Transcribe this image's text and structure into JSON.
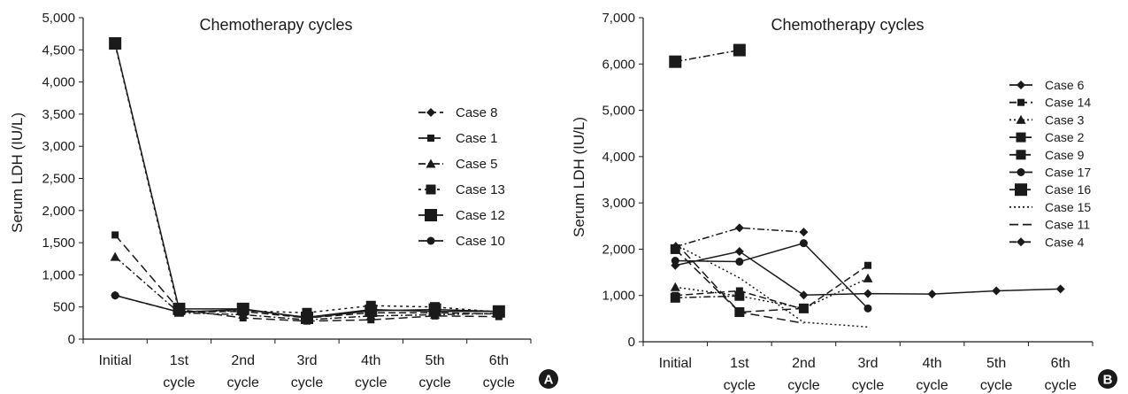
{
  "figure": {
    "panels": [
      "A",
      "B"
    ]
  },
  "chart_data": [
    {
      "panel": "A",
      "type": "line",
      "title": "Chemotherapy cycles",
      "xlabel": "",
      "ylabel": "Serum LDH (IU/L)",
      "ylim": [
        0,
        5000
      ],
      "yticks": [
        "0",
        "500",
        "1,000",
        "1,500",
        "2,000",
        "2,500",
        "3,000",
        "3,500",
        "4,000",
        "4,500",
        "5,000"
      ],
      "ytick_values": [
        0,
        500,
        1000,
        1500,
        2000,
        2500,
        3000,
        3500,
        4000,
        4500,
        5000
      ],
      "categories": [
        [
          "Initial"
        ],
        [
          "1st",
          "cycle"
        ],
        [
          "2nd",
          "cycle"
        ],
        [
          "3rd",
          "cycle"
        ],
        [
          "4th",
          "cycle"
        ],
        [
          "5th",
          "cycle"
        ],
        [
          "6th",
          "cycle"
        ]
      ],
      "legend_position": "right",
      "grid": false,
      "series": [
        {
          "name": "Case 8",
          "marker": "diamond",
          "dash": "8,4",
          "values": [
            680,
            420,
            430,
            330,
            410,
            410,
            390
          ]
        },
        {
          "name": "Case 1",
          "marker": "square-small",
          "dash": "10,5",
          "values": [
            1620,
            460,
            330,
            280,
            300,
            360,
            350
          ]
        },
        {
          "name": "Case 5",
          "marker": "triangle",
          "dash": "8,3,2,3",
          "values": [
            1280,
            410,
            380,
            300,
            360,
            380,
            400
          ]
        },
        {
          "name": "Case 13",
          "marker": "square",
          "dash": "3,4",
          "values": [
            4580,
            430,
            440,
            410,
            520,
            500,
            420
          ]
        },
        {
          "name": "Case 12",
          "marker": "square-big",
          "dash": "",
          "values": [
            4600,
            470,
            470,
            330,
            440,
            460,
            430
          ]
        },
        {
          "name": "Case 10",
          "marker": "circle",
          "dash": "",
          "values": [
            680,
            420,
            460,
            340,
            460,
            430,
            430
          ]
        }
      ]
    },
    {
      "panel": "B",
      "type": "line",
      "title": "Chemotherapy cycles",
      "xlabel": "",
      "ylabel": "Serum LDH (IU/L)",
      "ylim": [
        0,
        7000
      ],
      "yticks": [
        "0",
        "1,000",
        "2,000",
        "3,000",
        "4,000",
        "5,000",
        "6,000",
        "7,000"
      ],
      "ytick_values": [
        0,
        1000,
        2000,
        3000,
        4000,
        5000,
        6000,
        7000
      ],
      "categories": [
        [
          "Initial"
        ],
        [
          "1st",
          "cycle"
        ],
        [
          "2nd",
          "cycle"
        ],
        [
          "3rd",
          "cycle"
        ],
        [
          "4th",
          "cycle"
        ],
        [
          "5th",
          "cycle"
        ],
        [
          "6th",
          "cycle"
        ]
      ],
      "legend_position": "right",
      "grid": false,
      "series": [
        {
          "name": "Case 6",
          "marker": "diamond",
          "dash": "",
          "values": [
            1650,
            1950,
            1010,
            1040,
            1030,
            1100,
            1140
          ]
        },
        {
          "name": "Case 14",
          "marker": "square-small",
          "dash": "8,4",
          "values": [
            1000,
            1100,
            700,
            1650,
            null,
            null,
            null
          ]
        },
        {
          "name": "Case 3",
          "marker": "triangle",
          "dash": "2,3",
          "values": [
            1180,
            990,
            720,
            1370,
            null,
            null,
            null
          ]
        },
        {
          "name": "Case 2",
          "marker": "square",
          "dash": "10,5",
          "values": [
            2000,
            640,
            720,
            null,
            null,
            null,
            null
          ]
        },
        {
          "name": "Case 9",
          "marker": "square",
          "dash": "8,3,2,3",
          "values": [
            950,
            990,
            null,
            null,
            null,
            null,
            null
          ]
        },
        {
          "name": "Case 17",
          "marker": "circle",
          "dash": "",
          "values": [
            1750,
            1730,
            2130,
            720,
            null,
            null,
            null
          ]
        },
        {
          "name": "Case 16",
          "marker": "square-big",
          "dash": "8,3,2,3",
          "values": [
            6050,
            6300,
            null,
            null,
            null,
            null,
            null
          ]
        },
        {
          "name": "Case 15",
          "marker": "none",
          "dash": "2,3",
          "values": [
            2100,
            1380,
            420,
            320,
            null,
            null,
            null
          ]
        },
        {
          "name": "Case 11",
          "marker": "none",
          "dash": "10,5",
          "values": [
            2150,
            640,
            400,
            null,
            null,
            null,
            null
          ]
        },
        {
          "name": "Case 4",
          "marker": "diamond",
          "dash": "8,3,2,3",
          "values": [
            2050,
            2460,
            2370,
            null,
            null,
            null,
            null
          ]
        }
      ]
    }
  ]
}
